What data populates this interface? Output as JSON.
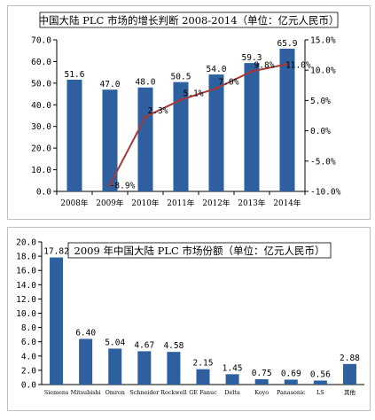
{
  "chart_data": [
    {
      "type": "bar",
      "title": "中国大陆 PLC 市场的增长判断 2008-2014（单位：亿元人民币）",
      "categories": [
        "2008年",
        "2009年",
        "2010年",
        "2011年",
        "2012年",
        "2013年",
        "2014年"
      ],
      "series": [
        {
          "values": [
            51.6,
            47.0,
            48.0,
            50.5,
            54.0,
            59.3,
            65.9
          ],
          "labels": [
            "51.6",
            "47.0",
            "48.0",
            "50.5",
            "54.0",
            "59.3",
            "65.9"
          ],
          "color": "#2e5f9f",
          "axis": "left"
        },
        {
          "type": "line",
          "x": [
            "2009年",
            "2010年",
            "2011年",
            "2012年",
            "2013年",
            "2014年"
          ],
          "values": [
            -8.9,
            2.3,
            5.1,
            7.0,
            9.8,
            11.0
          ],
          "labels": [
            "-8.9%",
            "2.3%",
            "5.1%",
            "7.0%",
            "9.8%",
            "11.0%"
          ],
          "color": "#a33a3a",
          "axis": "right"
        }
      ],
      "ylim": [
        0,
        70
      ],
      "yticks": [
        "0.0",
        "10.0",
        "20.0",
        "30.0",
        "40.0",
        "50.0",
        "60.0",
        "70.0"
      ],
      "ylim_right": [
        -10,
        15
      ],
      "yticks_right": [
        "-10.0%",
        "-5.0%",
        "0.0%",
        "5.0%",
        "10.0%",
        "15.0%"
      ],
      "grid": false
    },
    {
      "type": "bar",
      "title": "2009 年中国大陆 PLC 市场份额（单位：亿元人民币）",
      "categories": [
        "Siemens",
        "Mitsubishi",
        "Omron",
        "Schneider",
        "Rockwell",
        "GE Fanuc",
        "Delta",
        "Koyo",
        "Panasonic",
        "LS",
        "其他"
      ],
      "values": [
        17.82,
        6.4,
        5.04,
        4.67,
        4.58,
        2.15,
        1.45,
        0.75,
        0.69,
        0.56,
        2.88
      ],
      "labels": [
        "17.82",
        "6.40",
        "5.04",
        "4.67",
        "4.58",
        "2.15",
        "1.45",
        "0.75",
        "0.69",
        "0.56",
        "2.88"
      ],
      "color": "#2e5f9f",
      "ylim": [
        0,
        20
      ],
      "yticks": [
        "0.0",
        "2.0",
        "4.0",
        "6.0",
        "8.0",
        "10.0",
        "12.0",
        "14.0",
        "16.0",
        "18.0",
        "20.0"
      ],
      "grid": false
    }
  ]
}
